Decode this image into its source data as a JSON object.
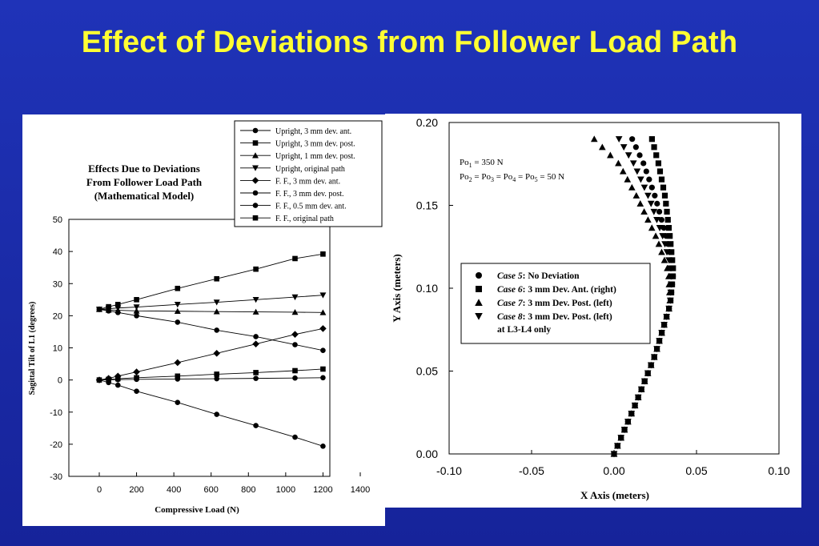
{
  "slide": {
    "title": "Effect of Deviations from Follower Load Path"
  },
  "chart_data": [
    {
      "type": "line",
      "title": "Effects Due to Deviations\nFrom Follower Load Path\n(Mathematical Model)",
      "title_lines": [
        "Effects Due to Deviations",
        "From Follower Load Path",
        "(Mathematical Model)"
      ],
      "xlabel": "Compressive Load (N)",
      "ylabel": "Sagittal Tilt of L1 (degrees)",
      "xlim": [
        0,
        1400
      ],
      "ylim": [
        -30,
        50
      ],
      "xticks": [
        0,
        200,
        400,
        600,
        800,
        1000,
        1200,
        1400
      ],
      "yticks": [
        -30,
        -20,
        -10,
        0,
        10,
        20,
        30,
        40,
        50
      ],
      "grid": false,
      "legend_position": "top-right",
      "series": [
        {
          "name": "Upright, 3 mm dev. ant.",
          "marker": "circle",
          "x": [
            0,
            50,
            100,
            200,
            420,
            630,
            840,
            1050,
            1200
          ],
          "y": [
            22,
            21.5,
            21,
            20,
            18,
            15.5,
            13.5,
            11,
            9.2
          ]
        },
        {
          "name": "Upright, 3 mm dev. post.",
          "marker": "square",
          "x": [
            0,
            50,
            100,
            200,
            420,
            630,
            840,
            1050,
            1200
          ],
          "y": [
            22,
            22.8,
            23.5,
            25,
            28.5,
            31.5,
            34.5,
            37.8,
            39.2
          ]
        },
        {
          "name": "Upright, 1 mm dev. post.",
          "marker": "triangle-up",
          "x": [
            0,
            50,
            100,
            200,
            420,
            630,
            840,
            1050,
            1200
          ],
          "y": [
            22,
            21.8,
            21.7,
            21.5,
            21.4,
            21.3,
            21.2,
            21.1,
            21.0
          ]
        },
        {
          "name": "Upright, original path",
          "marker": "triangle-down",
          "x": [
            0,
            50,
            100,
            200,
            420,
            630,
            840,
            1050,
            1200
          ],
          "y": [
            22,
            22.2,
            22.4,
            22.7,
            23.5,
            24.2,
            25,
            25.8,
            26.4
          ]
        },
        {
          "name": "F. F., 3 mm dev. ant.",
          "marker": "diamond",
          "x": [
            0,
            50,
            100,
            200,
            420,
            630,
            840,
            1050,
            1200
          ],
          "y": [
            0,
            0.5,
            1.2,
            2.5,
            5.4,
            8.3,
            11.2,
            14.2,
            16
          ]
        },
        {
          "name": "F. F., 3 mm dev. post.",
          "marker": "circle",
          "x": [
            0,
            50,
            100,
            200,
            420,
            630,
            840,
            1050,
            1200
          ],
          "y": [
            0,
            -0.8,
            -1.6,
            -3.5,
            -7,
            -10.7,
            -14.2,
            -17.8,
            -20.6
          ]
        },
        {
          "name": "F. F., 0.5 mm dev. ant.",
          "marker": "circle",
          "x": [
            0,
            50,
            100,
            200,
            420,
            630,
            840,
            1050,
            1200
          ],
          "y": [
            0,
            0.05,
            0.1,
            0.2,
            0.3,
            0.4,
            0.5,
            0.6,
            0.7
          ]
        },
        {
          "name": "F. F., original path",
          "marker": "square",
          "x": [
            0,
            50,
            100,
            200,
            420,
            630,
            840,
            1050,
            1200
          ],
          "y": [
            0,
            0.2,
            0.4,
            0.7,
            1.2,
            1.8,
            2.3,
            2.9,
            3.4
          ]
        }
      ]
    },
    {
      "type": "scatter",
      "xlabel": "X Axis (meters)",
      "ylabel": "Y Axis (meters)",
      "xlim": [
        -0.1,
        0.1
      ],
      "ylim": [
        0,
        0.2
      ],
      "xticks": [
        -0.1,
        -0.05,
        0.0,
        0.05,
        0.1
      ],
      "xtick_labels": [
        "-0.10",
        "-0.05",
        "0.00",
        "0.05",
        "0.10"
      ],
      "yticks": [
        0,
        0.05,
        0.1,
        0.15,
        0.2
      ],
      "ytick_labels": [
        "0.00",
        "0.05",
        "0.10",
        "0.15",
        "0.20"
      ],
      "grid": false,
      "legend_position": "center-right",
      "annotation_lines": [
        "Po1 = 350 N",
        "Po2 = Po3 = Po4 = Po5 = 50 N"
      ],
      "series": [
        {
          "case": "Case 5",
          "description": ": No Deviation",
          "marker": "circle",
          "curve": {
            "x": [
              0,
              0.013,
              0.025,
              0.034,
              0.036,
              0.032,
              0.025,
              0.018,
              0.011
            ],
            "y": [
              0,
              0.03,
              0.06,
              0.09,
              0.11,
              0.13,
              0.155,
              0.175,
              0.19
            ]
          }
        },
        {
          "case": "Case 6",
          "description": ": 3 mm Dev. Ant. (right)",
          "marker": "square",
          "curve": {
            "x": [
              0,
              0.013,
              0.025,
              0.034,
              0.036,
              0.034,
              0.031,
              0.027,
              0.023
            ],
            "y": [
              0,
              0.03,
              0.06,
              0.09,
              0.11,
              0.13,
              0.155,
              0.175,
              0.19
            ]
          }
        },
        {
          "case": "Case 7",
          "description": ": 3 mm Dev. Post. (left)",
          "marker": "triangle-up",
          "curve": {
            "x": [
              0,
              0.013,
              0.025,
              0.034,
              0.033,
              0.026,
              0.014,
              0.003,
              -0.012
            ],
            "y": [
              0,
              0.03,
              0.06,
              0.09,
              0.11,
              0.13,
              0.155,
              0.175,
              0.19
            ]
          }
        },
        {
          "case": "Case 8",
          "description": ": 3 mm Dev. Post. (left)",
          "description_line2": "at L3-L4 only",
          "marker": "triangle-down",
          "curve": {
            "x": [
              0,
              0.013,
              0.025,
              0.034,
              0.035,
              0.03,
              0.021,
              0.012,
              0.003
            ],
            "y": [
              0,
              0.03,
              0.06,
              0.09,
              0.11,
              0.13,
              0.155,
              0.175,
              0.19
            ]
          }
        }
      ]
    }
  ]
}
